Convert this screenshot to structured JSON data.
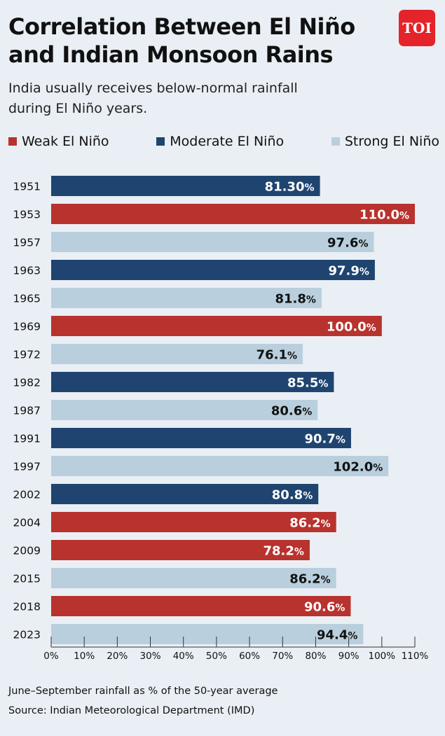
{
  "header": {
    "title_line1": "Correlation Between El Niño",
    "title_line2": "and Indian Monsoon Rains",
    "subtitle_line1": "India usually receives below-normal rainfall",
    "subtitle_line2": "during El Niño years.",
    "logo_text": "TOI"
  },
  "legend": [
    {
      "label": "Weak El Niño",
      "color": "#b8322e"
    },
    {
      "label": "Moderate El Niño",
      "color": "#1f4470"
    },
    {
      "label": "Strong El Niño",
      "color": "#b9cfdd"
    }
  ],
  "chart_data": {
    "type": "bar",
    "orientation": "horizontal",
    "categories": [
      "1951",
      "1953",
      "1957",
      "1963",
      "1965",
      "1969",
      "1972",
      "1982",
      "1987",
      "1991",
      "1997",
      "2002",
      "2004",
      "2009",
      "2015",
      "2018",
      "2023"
    ],
    "values": [
      81.3,
      110.0,
      97.6,
      97.9,
      81.8,
      100.0,
      76.1,
      85.5,
      80.6,
      90.7,
      102.0,
      80.8,
      86.2,
      78.2,
      86.2,
      90.6,
      94.4
    ],
    "value_labels": [
      "81.30",
      "110.0",
      "97.6",
      "97.9",
      "81.8",
      "100.0",
      "76.1",
      "85.5",
      "80.6",
      "90.7",
      "102.0",
      "80.8",
      "86.2",
      "78.2",
      "86.2",
      "90.6",
      "94.4"
    ],
    "value_suffix": "%",
    "strength": [
      "Moderate",
      "Weak",
      "Strong",
      "Moderate",
      "Strong",
      "Weak",
      "Strong",
      "Moderate",
      "Strong",
      "Moderate",
      "Strong",
      "Moderate",
      "Weak",
      "Weak",
      "Strong",
      "Weak",
      "Strong"
    ],
    "xlim": [
      0,
      110
    ],
    "xticks": [
      "0%",
      "10%",
      "20%",
      "30%",
      "40%",
      "50%",
      "60%",
      "70%",
      "80%",
      "90%",
      "100%",
      "110%"
    ],
    "colors": {
      "Weak": "#b8322e",
      "Moderate": "#1f4470",
      "Strong": "#b9cfdd"
    },
    "label_colors": {
      "Weak": "#ffffff",
      "Moderate": "#ffffff",
      "Strong": "#111111"
    }
  },
  "footer": {
    "note": "June–September rainfall as % of the 50-year average",
    "source": "Source: Indian Meteorological Department (IMD)"
  }
}
